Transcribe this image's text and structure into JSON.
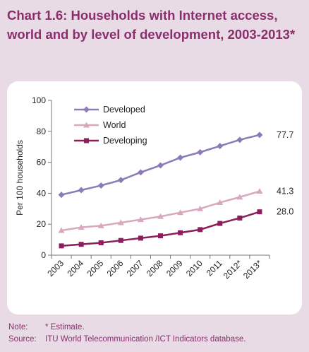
{
  "title": "Chart 1.6: Households with Internet access, world and by level of development, 2003-2013*",
  "notes": {
    "note_label": "Note:",
    "note_text": "* Estimate.",
    "source_label": "Source:",
    "source_text": "ITU World Telecommunication /ICT Indicators database."
  },
  "colors": {
    "background": "#e9dbe5",
    "title": "#8a2f6c",
    "developed": "#8b7bb7",
    "world": "#d7a8be",
    "developing": "#8a1f5b"
  },
  "chart_data": {
    "type": "line",
    "x": [
      "2003",
      "2004",
      "2005",
      "2006",
      "2007",
      "2008",
      "2009",
      "2010",
      "2011",
      "2012*",
      "2013*"
    ],
    "ylabel": "Per 100 households",
    "xlabel": "",
    "ylim": [
      0,
      100
    ],
    "yticks": [
      0,
      20,
      40,
      60,
      80,
      100
    ],
    "grid": false,
    "legend_position": "top-left",
    "series": [
      {
        "name": "Developed",
        "marker": "diamond",
        "color": "#8b7bb7",
        "values": [
          39,
          42,
          45,
          48.5,
          53.5,
          58,
          63,
          66.5,
          70.5,
          74.5,
          77.7
        ],
        "end_label": "77.7"
      },
      {
        "name": "World",
        "marker": "triangle",
        "color": "#d7a8be",
        "values": [
          16,
          18,
          19,
          21,
          23,
          25,
          27.5,
          30,
          34,
          37.5,
          41.3
        ],
        "end_label": "41.3"
      },
      {
        "name": "Developing",
        "marker": "square",
        "color": "#8a1f5b",
        "values": [
          6,
          7,
          8,
          9.5,
          11,
          12.5,
          14.5,
          16.5,
          20.5,
          24,
          28.0
        ],
        "end_label": "28.0"
      }
    ]
  }
}
